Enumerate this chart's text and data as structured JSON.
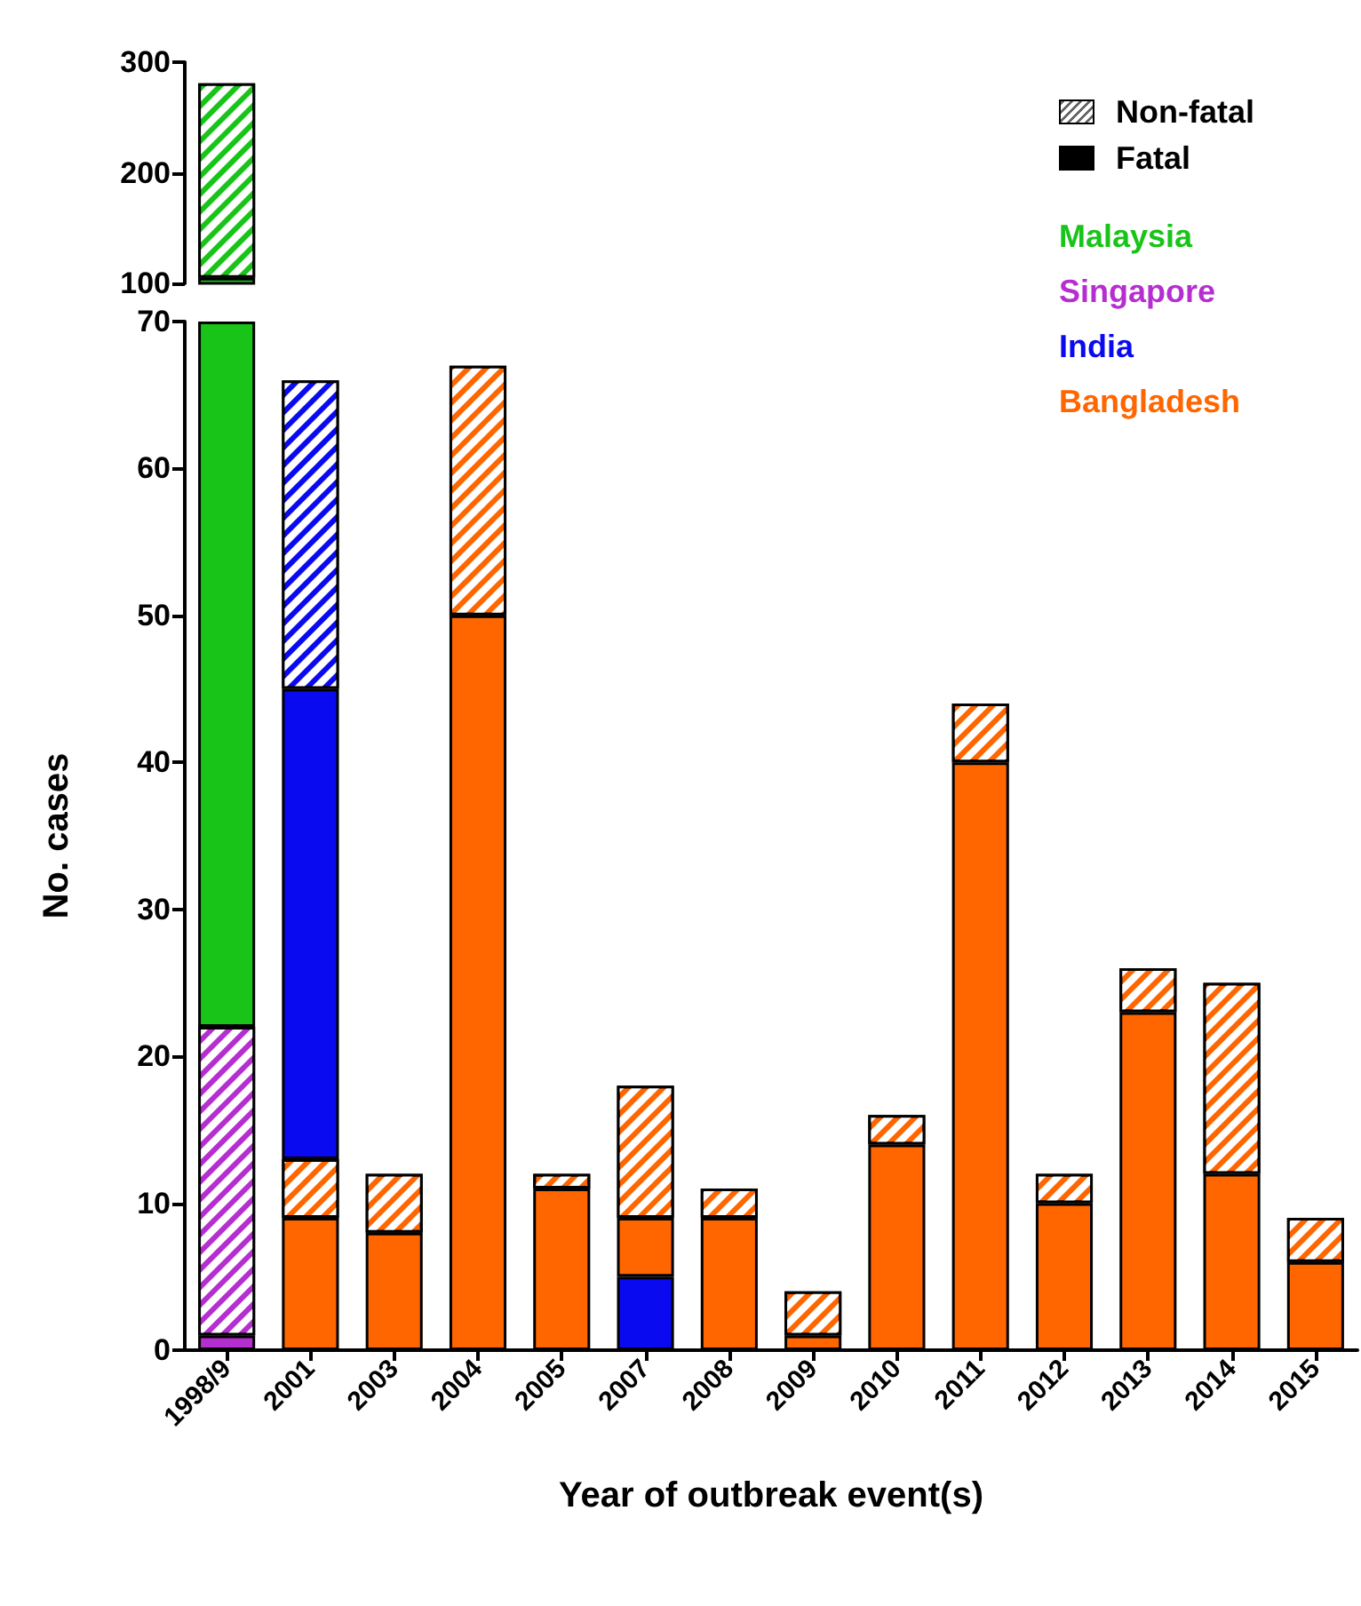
{
  "chart_data": [
    {
      "type": "bar",
      "stacked": true,
      "categories": [
        "1998/9",
        "2001",
        "2003",
        "2004",
        "2005",
        "2007",
        "2008",
        "2009",
        "2010",
        "2011",
        "2012",
        "2013",
        "2014",
        "2015"
      ],
      "ylim": [
        100,
        300
      ],
      "yticks": [
        100,
        200,
        300
      ],
      "tick_labels": "y",
      "annotations": [
        "Non-fatal",
        "Fatal"
      ],
      "series": [
        {
          "name": "Malaysia",
          "color": "#19c419",
          "values": [
            105,
            null,
            null,
            null,
            null,
            null,
            null,
            null,
            null,
            null,
            null,
            null,
            null,
            null
          ]
        },
        {
          "color": "#19c419",
          "values": [
            176,
            null,
            null,
            null,
            null,
            null,
            null,
            null,
            null,
            null,
            null,
            null,
            null,
            null
          ]
        }
      ]
    },
    {
      "type": "bar",
      "stacked": true,
      "categories": [
        "1998/9",
        "2001",
        "2003",
        "2004",
        "2005",
        "2007",
        "2008",
        "2009",
        "2010",
        "2011",
        "2012",
        "2013",
        "2014",
        "2015"
      ],
      "ylim": [
        0,
        70
      ],
      "yticks": [
        0,
        10,
        20,
        30,
        40,
        50,
        60,
        70
      ],
      "xlabel": "Year of outbreak event(s)",
      "ylabel": "No. cases",
      "legend": "top right",
      "series": [
        {
          "name": "Singapore",
          "color": "#b52fd0",
          "values": [
            1,
            null,
            null,
            null,
            null,
            null,
            null,
            null,
            null,
            null,
            null,
            null,
            null,
            null
          ]
        },
        {
          "color": "#b52fd0",
          "values": [
            21,
            null,
            null,
            null,
            null,
            null,
            null,
            null,
            null,
            null,
            null,
            null,
            null,
            null
          ]
        },
        {
          "name": "India",
          "color": "#0a0af0",
          "values": [
            null,
            null,
            null,
            null,
            null,
            5,
            null,
            null,
            null,
            null,
            null,
            null,
            null,
            null
          ]
        },
        {
          "name": "Bangladesh",
          "color": "#ff6600",
          "values": [
            null,
            9,
            8,
            50,
            11,
            4,
            9,
            1,
            14,
            40,
            10,
            23,
            12,
            6
          ]
        },
        {
          "color": "#ff6600",
          "values": [
            null,
            4,
            4,
            17,
            1,
            9,
            2,
            3,
            2,
            4,
            2,
            3,
            13,
            3
          ]
        },
        {
          "color": "#19c419",
          "values": [
            48,
            null,
            null,
            null,
            null,
            null,
            null,
            null,
            null,
            null,
            null,
            null,
            null,
            null
          ]
        },
        {
          "color": "#0a0af0",
          "values": [
            null,
            32,
            null,
            null,
            null,
            null,
            null,
            null,
            null,
            null,
            null,
            null,
            null,
            null
          ]
        },
        {
          "color": "#0a0af0",
          "values": [
            null,
            21,
            null,
            null,
            null,
            null,
            null,
            null,
            null,
            null,
            null,
            null,
            null,
            null
          ]
        }
      ]
    }
  ]
}
